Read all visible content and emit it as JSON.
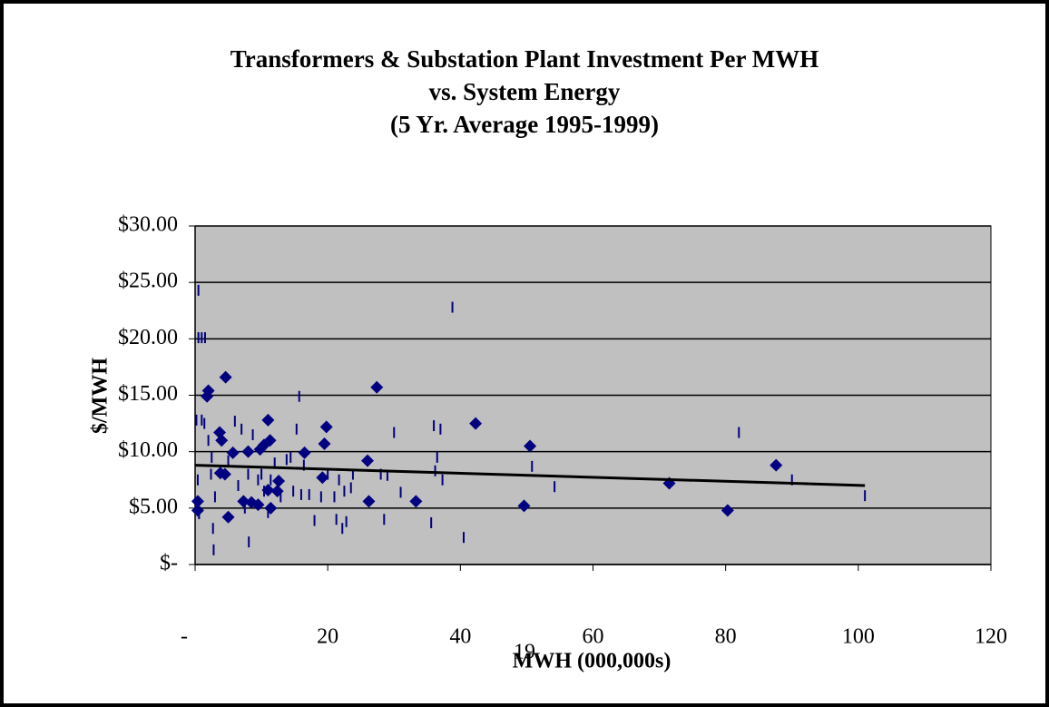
{
  "chart_data": {
    "type": "scatter",
    "title": [
      "Transformers & Substation Plant Investment Per MWH",
      "vs. System Energy",
      "(5 Yr. Average 1995-1999)"
    ],
    "x_label": "MWH (000,000s)",
    "y_label": "$/MWH",
    "annotation": "19",
    "xlim": [
      0,
      120
    ],
    "ylim": [
      0,
      30
    ],
    "xticks": [
      {
        "value": 0,
        "label": "-"
      },
      20,
      40,
      60,
      80,
      100,
      120
    ],
    "yticks": [
      {
        "value": 0,
        "label": "$-"
      },
      {
        "value": 5,
        "label": "$5.00"
      },
      {
        "value": 10,
        "label": "$10.00"
      },
      {
        "value": 15,
        "label": "$15.00"
      },
      {
        "value": 20,
        "label": "$20.00"
      },
      {
        "value": 25,
        "label": "$25.00"
      },
      {
        "value": 30,
        "label": "$30.00"
      }
    ],
    "grid": true,
    "plot_background": "#c0c0c0",
    "series": [
      {
        "marker": "diamond",
        "color": "#000080",
        "x": [
          0.4,
          0.4,
          1.8,
          2.0,
          4.6,
          3.7,
          4.0,
          3.8,
          4.5,
          5.0,
          5.7,
          7.3,
          8.0,
          8.5,
          9.5,
          9.8,
          10.4,
          11.0,
          11.3,
          11.0,
          11.4,
          12.4,
          12.6,
          16.5,
          19.2,
          19.5,
          19.8,
          26.0,
          26.2,
          27.4,
          33.3,
          42.3,
          49.6,
          50.5,
          71.5,
          80.3,
          87.6
        ],
        "values": [
          5.6,
          4.8,
          14.9,
          15.4,
          16.6,
          11.7,
          11.0,
          8.1,
          8.0,
          4.2,
          9.9,
          5.6,
          10.0,
          5.5,
          5.3,
          10.2,
          10.6,
          12.8,
          11.0,
          6.6,
          5.0,
          6.5,
          7.4,
          9.9,
          7.7,
          10.7,
          12.2,
          9.2,
          5.6,
          15.7,
          5.6,
          12.5,
          5.2,
          10.5,
          7.2,
          4.8,
          8.8
        ]
      },
      {
        "marker": "tick",
        "color": "#000080",
        "x": [
          0.5,
          0.5,
          1.0,
          1.5,
          0.2,
          1.0,
          0.4,
          0.6,
          1.4,
          2.0,
          2.5,
          2.4,
          3.0,
          2.7,
          2.8,
          5.0,
          6.0,
          6.5,
          7.0,
          7.5,
          8.0,
          8.1,
          8.7,
          9.5,
          10.0,
          10.4,
          11.0,
          11.4,
          12.0,
          12.9,
          13.8,
          14.4,
          14.8,
          15.3,
          15.7,
          16.0,
          16.4,
          17.2,
          18.0,
          19.0,
          20.0,
          21.0,
          21.3,
          21.7,
          22.2,
          22.5,
          22.8,
          23.5,
          23.8,
          28.0,
          28.5,
          29.0,
          30.0,
          31.0,
          35.6,
          36.0,
          36.2,
          36.5,
          37.0,
          37.3,
          38.8,
          40.5,
          50.8,
          54.2,
          82.0,
          90.0,
          101.0
        ],
        "values": [
          24.3,
          20.1,
          20.1,
          20.1,
          12.8,
          12.8,
          7.5,
          4.5,
          12.5,
          11.0,
          9.5,
          8.0,
          6.0,
          3.2,
          1.3,
          9.2,
          12.7,
          7.0,
          12.0,
          5.0,
          8.0,
          2.0,
          11.5,
          7.5,
          8.0,
          6.5,
          4.6,
          7.5,
          9.0,
          6.0,
          9.3,
          9.5,
          6.5,
          12.0,
          14.9,
          6.2,
          8.8,
          6.2,
          3.9,
          6.0,
          8.0,
          6.0,
          4.0,
          7.5,
          3.2,
          6.5,
          3.8,
          6.8,
          8.0,
          8.0,
          4.0,
          7.9,
          11.7,
          6.4,
          3.7,
          12.3,
          8.3,
          9.5,
          12.0,
          7.5,
          22.8,
          2.4,
          8.7,
          6.9,
          11.7,
          7.5,
          6.1
        ]
      }
    ],
    "trendline": {
      "color": "#000000",
      "x": [
        0,
        101
      ],
      "values": [
        8.8,
        7.0
      ]
    }
  }
}
